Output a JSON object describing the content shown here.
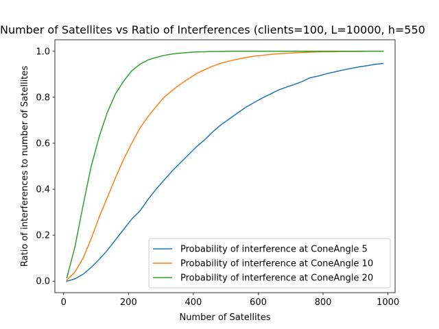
{
  "chart_data": {
    "type": "line",
    "title": "Number of Satellites vs Ratio of Interferences (clients=100, L=10000, h=550",
    "xlabel": "Number of Satellites",
    "ylabel": "Ratio of interferences to number of Satellites",
    "xlim": [
      -27,
      1022
    ],
    "ylim": [
      -0.05,
      1.05
    ],
    "xticks": [
      0,
      200,
      400,
      600,
      800,
      1000
    ],
    "xtick_labels": [
      "0",
      "200",
      "400",
      "600",
      "800",
      "1000"
    ],
    "yticks": [
      0.0,
      0.2,
      0.4,
      0.6,
      0.8,
      1.0
    ],
    "ytick_labels": [
      "0.0",
      "0.2",
      "0.4",
      "0.6",
      "0.8",
      "1.0"
    ],
    "grid": false,
    "legend_position": "lower-right",
    "x": [
      10,
      35,
      60,
      85,
      110,
      135,
      160,
      185,
      210,
      235,
      260,
      285,
      310,
      335,
      360,
      385,
      410,
      435,
      460,
      485,
      510,
      535,
      560,
      585,
      610,
      635,
      660,
      685,
      710,
      735,
      760,
      785,
      810,
      835,
      860,
      885,
      910,
      935,
      960,
      985
    ],
    "series": [
      {
        "name": "Probability of interference at ConeAngle 5",
        "color": "#1f77b4",
        "values": [
          0.0,
          0.01,
          0.03,
          0.06,
          0.095,
          0.135,
          0.18,
          0.225,
          0.27,
          0.305,
          0.355,
          0.4,
          0.44,
          0.48,
          0.515,
          0.55,
          0.585,
          0.615,
          0.65,
          0.68,
          0.705,
          0.73,
          0.755,
          0.775,
          0.795,
          0.812,
          0.83,
          0.843,
          0.855,
          0.868,
          0.885,
          0.892,
          0.902,
          0.91,
          0.918,
          0.925,
          0.932,
          0.937,
          0.943,
          0.947
        ]
      },
      {
        "name": "Probability of interference at ConeAngle 10",
        "color": "#ff7f0e",
        "values": [
          0.005,
          0.04,
          0.1,
          0.185,
          0.28,
          0.365,
          0.45,
          0.53,
          0.6,
          0.665,
          0.715,
          0.76,
          0.8,
          0.83,
          0.857,
          0.88,
          0.903,
          0.92,
          0.935,
          0.948,
          0.957,
          0.965,
          0.972,
          0.978,
          0.982,
          0.986,
          0.989,
          0.991,
          0.993,
          0.995,
          0.996,
          0.997,
          0.998,
          0.998,
          0.999,
          0.999,
          0.999,
          1.0,
          1.0,
          1.0
        ]
      },
      {
        "name": "Probability of interference at ConeAngle 20",
        "color": "#2ca02c",
        "values": [
          0.015,
          0.15,
          0.33,
          0.5,
          0.63,
          0.735,
          0.815,
          0.87,
          0.915,
          0.943,
          0.962,
          0.973,
          0.982,
          0.988,
          0.992,
          0.995,
          0.997,
          0.998,
          0.999,
          0.999,
          1.0,
          1.0,
          1.0,
          1.0,
          1.0,
          1.0,
          1.0,
          1.0,
          1.0,
          1.0,
          1.0,
          1.0,
          1.0,
          1.0,
          1.0,
          1.0,
          1.0,
          1.0,
          1.0,
          1.0
        ]
      }
    ]
  }
}
